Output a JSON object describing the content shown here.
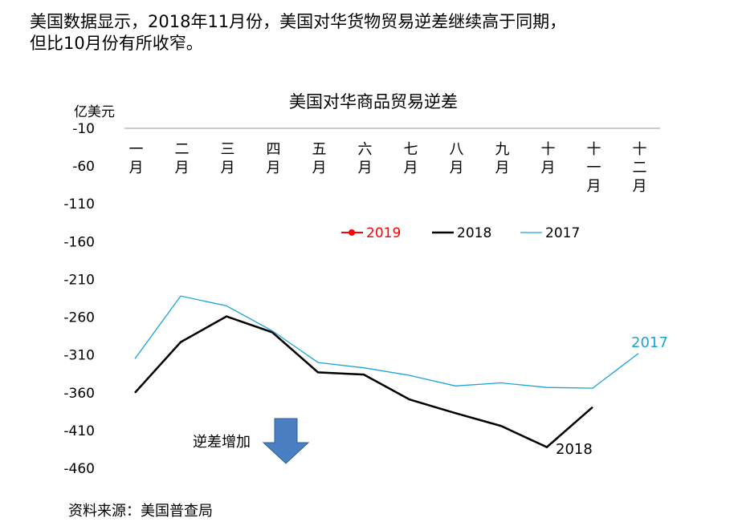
{
  "intro": [
    "美国数据显示，2018年11月份，美国对华货物贸易逆差继续高于同期，",
    "但比10月份有所收窄。"
  ],
  "chart_data": {
    "type": "line",
    "title": "美国对华商品贸易逆差",
    "y_label": "亿美元",
    "categories": [
      "一月",
      "二月",
      "三月",
      "四月",
      "五月",
      "六月",
      "七月",
      "八月",
      "九月",
      "十月",
      "十一月",
      "十二月"
    ],
    "series": [
      {
        "name": "2019",
        "color": "#ff0000",
        "marker": true,
        "values": [
          null,
          null,
          null,
          null,
          null,
          null,
          null,
          null,
          null,
          null,
          null,
          null
        ]
      },
      {
        "name": "2018",
        "color": "#000000",
        "values": [
          -360,
          -293,
          -259,
          -280,
          -333,
          -336,
          -369,
          -387,
          -404,
          -432,
          -379,
          null
        ]
      },
      {
        "name": "2017",
        "color": "#1aa3d9",
        "values": [
          -315,
          -232,
          -245,
          -278,
          -320,
          -327,
          -337,
          -351,
          -347,
          -353,
          -354,
          -308
        ]
      }
    ],
    "ylim": [
      -460,
      -10
    ],
    "yticks": [
      -10,
      -60,
      -110,
      -160,
      -210,
      -260,
      -310,
      -360,
      -410,
      -460
    ],
    "annotations": [
      "2017",
      "2018",
      "逆差增加"
    ],
    "source": "资料来源：美国普查局"
  }
}
